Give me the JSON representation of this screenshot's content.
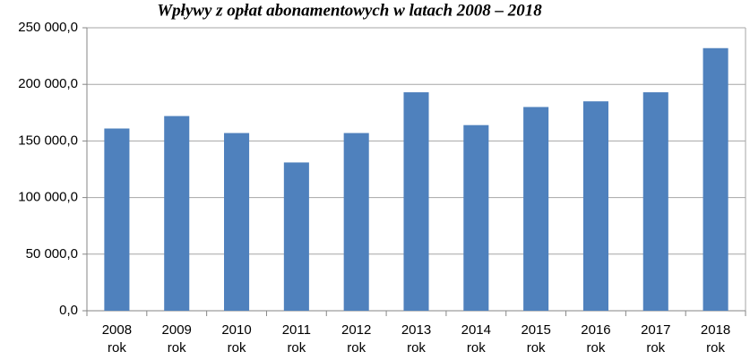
{
  "chart_data": {
    "type": "bar",
    "title": "Wpływy z opłat abonamentowych w latach 2008 – 2018",
    "categories": [
      "2008\nrok",
      "2009\nrok",
      "2010\nrok",
      "2011\nrok",
      "2012\nrok",
      "2013\nrok",
      "2014\nrok",
      "2015\nrok",
      "2016\nrok",
      "2017\nrok",
      "2018\nrok"
    ],
    "values": [
      161000,
      172000,
      157000,
      131000,
      157000,
      193000,
      164000,
      180000,
      185000,
      193000,
      232000
    ],
    "color": "#4f81bd",
    "ylim": [
      0,
      250000
    ],
    "yticks": [
      {
        "value": 0,
        "label": "0,0"
      },
      {
        "value": 50000,
        "label": "50 000,0"
      },
      {
        "value": 100000,
        "label": "100 000,0"
      },
      {
        "value": 150000,
        "label": "150 000,0"
      },
      {
        "value": 200000,
        "label": "200 000,0"
      },
      {
        "value": 250000,
        "label": "250 000,0"
      }
    ],
    "grid": true
  }
}
